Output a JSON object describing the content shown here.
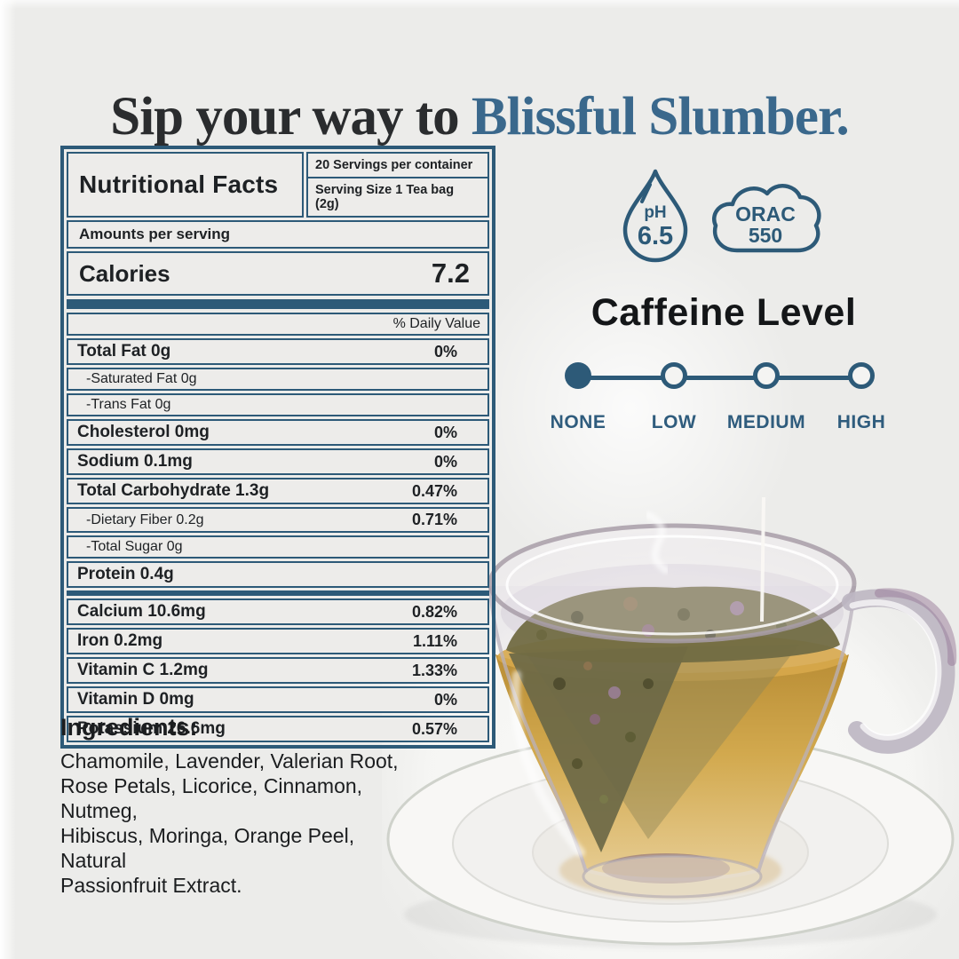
{
  "colors": {
    "background": "#ececea",
    "accent_blue": "#2d5a78",
    "title_blue": "#3a688c",
    "title_dark": "#2a2c2e",
    "tea_amber": "#d2a94e"
  },
  "title": {
    "prefix": "Sip your way to ",
    "highlight": "Blissful Slumber."
  },
  "nutrition": {
    "heading": "Nutritional Facts",
    "servings": "20 Servings per container",
    "serving_size": "Serving Size 1 Tea bag (2g)",
    "amounts_label": "Amounts per serving",
    "calories_label": "Calories",
    "calories_value": "7.2",
    "daily_value_label": "% Daily Value",
    "rows": [
      {
        "label": "Total Fat 0g",
        "value": "0%",
        "type": "main"
      },
      {
        "label": "-Saturated Fat 0g",
        "value": "",
        "type": "sub"
      },
      {
        "label": "-Trans Fat 0g",
        "value": "",
        "type": "sub"
      },
      {
        "label": "Cholesterol 0mg",
        "value": "0%",
        "type": "main"
      },
      {
        "label": "Sodium 0.1mg",
        "value": "0%",
        "type": "main"
      },
      {
        "label": "Total Carbohydrate 1.3g",
        "value": "0.47%",
        "type": "main"
      },
      {
        "label": "-Dietary Fiber 0.2g",
        "value": "0.71%",
        "type": "sub"
      },
      {
        "label": "-Total Sugar 0g",
        "value": "",
        "type": "sub"
      },
      {
        "label": "Protein 0.4g",
        "value": "",
        "type": "main",
        "divider_after": true
      },
      {
        "label": "Calcium 10.6mg",
        "value": "0.82%",
        "type": "main"
      },
      {
        "label": "Iron 0.2mg",
        "value": "1.11%",
        "type": "main"
      },
      {
        "label": "Vitamin C 1.2mg",
        "value": "1.33%",
        "type": "main"
      },
      {
        "label": "Vitamin D 0mg",
        "value": "0%",
        "type": "main"
      },
      {
        "label": "Potassium 26.6mg",
        "value": "0.57%",
        "type": "main"
      }
    ]
  },
  "badges": {
    "ph": {
      "label": "pH",
      "value": "6.5",
      "icon": "water-drop-icon"
    },
    "orac": {
      "label": "ORAC",
      "value": "550",
      "icon": "cloud-icon"
    }
  },
  "caffeine": {
    "heading": "Caffeine Level",
    "levels": [
      {
        "label": "NONE",
        "active": true
      },
      {
        "label": "LOW",
        "active": false
      },
      {
        "label": "MEDIUM",
        "active": false
      },
      {
        "label": "HIGH",
        "active": false
      }
    ]
  },
  "ingredients": {
    "heading": "Ingredients:",
    "lines": [
      "Chamomile, Lavender, Valerian Root,",
      "Rose Petals, Licorice, Cinnamon, Nutmeg,",
      "Hibiscus, Moringa, Orange Peel, Natural",
      "Passionfruit Extract."
    ]
  }
}
